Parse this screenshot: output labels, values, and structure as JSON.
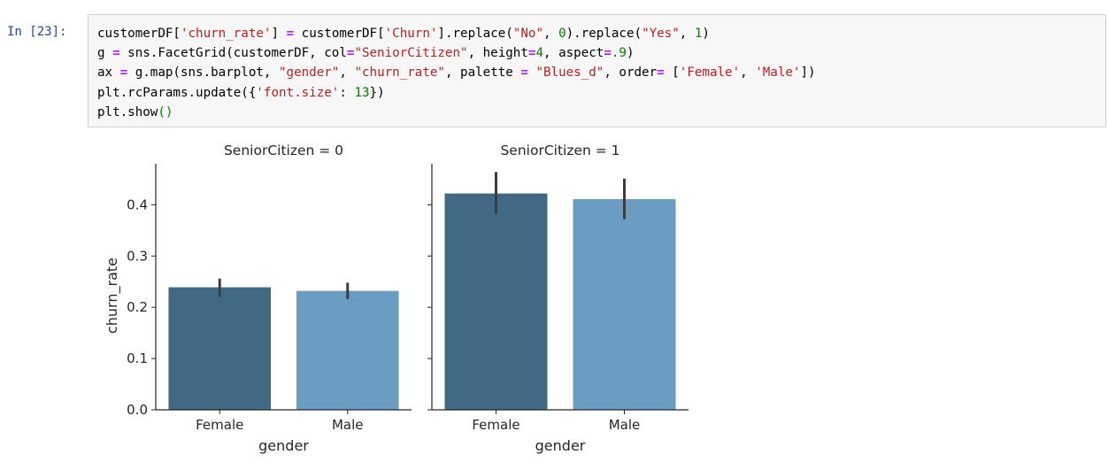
{
  "cell": {
    "prompt": "In [23]:",
    "code_lines": [
      [
        {
          "t": "customerDF["
        },
        {
          "t": "'churn_rate'",
          "c": "str"
        },
        {
          "t": "] "
        },
        {
          "t": "=",
          "c": "op"
        },
        {
          "t": " customerDF["
        },
        {
          "t": "'Churn'",
          "c": "str"
        },
        {
          "t": "].replace("
        },
        {
          "t": "\"No\"",
          "c": "str"
        },
        {
          "t": ", "
        },
        {
          "t": "0",
          "c": "num"
        },
        {
          "t": ").replace("
        },
        {
          "t": "\"Yes\"",
          "c": "str"
        },
        {
          "t": ", "
        },
        {
          "t": "1",
          "c": "num"
        },
        {
          "t": ")"
        }
      ],
      [
        {
          "t": "g "
        },
        {
          "t": "=",
          "c": "op"
        },
        {
          "t": " sns.FacetGrid(customerDF, col"
        },
        {
          "t": "=",
          "c": "op"
        },
        {
          "t": "\"SeniorCitizen\"",
          "c": "str"
        },
        {
          "t": ", height"
        },
        {
          "t": "=",
          "c": "op"
        },
        {
          "t": "4",
          "c": "num"
        },
        {
          "t": ", aspect"
        },
        {
          "t": "=",
          "c": "op"
        },
        {
          "t": ".9",
          "c": "num"
        },
        {
          "t": ")"
        }
      ],
      [
        {
          "t": "ax "
        },
        {
          "t": "=",
          "c": "op"
        },
        {
          "t": " g.map(sns.barplot, "
        },
        {
          "t": "\"gender\"",
          "c": "str"
        },
        {
          "t": ", "
        },
        {
          "t": "\"churn_rate\"",
          "c": "str"
        },
        {
          "t": ", palette "
        },
        {
          "t": "=",
          "c": "op"
        },
        {
          "t": " "
        },
        {
          "t": "\"Blues_d\"",
          "c": "str"
        },
        {
          "t": ", order"
        },
        {
          "t": "=",
          "c": "op"
        },
        {
          "t": " ["
        },
        {
          "t": "'Female'",
          "c": "str"
        },
        {
          "t": ", "
        },
        {
          "t": "'Male'",
          "c": "str"
        },
        {
          "t": "])"
        }
      ],
      [
        {
          "t": "plt.rcParams.update({"
        },
        {
          "t": "'font.size'",
          "c": "str"
        },
        {
          "t": ": "
        },
        {
          "t": "13",
          "c": "num"
        },
        {
          "t": "})"
        }
      ],
      [
        {
          "t": "plt.show"
        },
        {
          "t": "()",
          "c": "paren"
        }
      ]
    ]
  },
  "chart_data": [
    {
      "type": "bar",
      "title": "SeniorCitizen = 0",
      "xlabel": "gender",
      "ylabel": "churn_rate",
      "categories": [
        "Female",
        "Male"
      ],
      "values": [
        0.239,
        0.232
      ],
      "error_low": [
        0.22,
        0.216
      ],
      "error_high": [
        0.256,
        0.248
      ],
      "ylim": [
        0.0,
        0.48
      ],
      "yticks": [
        "0.0",
        "0.1",
        "0.2",
        "0.3",
        "0.4"
      ],
      "colors": [
        "#416984",
        "#6a9dc1"
      ]
    },
    {
      "type": "bar",
      "title": "SeniorCitizen = 1",
      "xlabel": "gender",
      "ylabel": "",
      "categories": [
        "Female",
        "Male"
      ],
      "values": [
        0.422,
        0.411
      ],
      "error_low": [
        0.382,
        0.372
      ],
      "error_high": [
        0.464,
        0.451
      ],
      "ylim": [
        0.0,
        0.48
      ],
      "yticks": [],
      "colors": [
        "#416984",
        "#6a9dc1"
      ]
    }
  ]
}
